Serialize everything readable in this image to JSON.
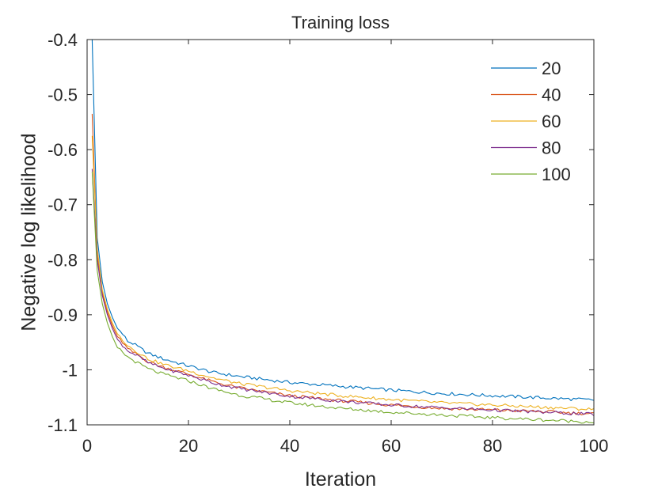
{
  "chart_data": {
    "type": "line",
    "title": "Training loss",
    "xlabel": "Iteration",
    "ylabel": "Negative log likelihood",
    "xlim": [
      0,
      100
    ],
    "ylim": [
      -1.1,
      -0.4
    ],
    "xticks": [
      0,
      20,
      40,
      60,
      80,
      100
    ],
    "xtick_labels": [
      "0",
      "20",
      "40",
      "60",
      "80",
      "100"
    ],
    "yticks": [
      -0.4,
      -0.5,
      -0.6,
      -0.7,
      -0.8,
      -0.9,
      -1.0,
      -1.1
    ],
    "ytick_labels": [
      "-0.4",
      "-0.5",
      "-0.6",
      "-0.7",
      "-0.8",
      "-0.9",
      "-1",
      "-1.1"
    ],
    "grid": false,
    "legend_position": "top-right",
    "x": [
      1,
      2,
      3,
      4,
      5,
      6,
      7,
      8,
      9,
      10,
      12,
      15,
      20,
      25,
      30,
      40,
      50,
      60,
      70,
      80,
      90,
      100
    ],
    "series": [
      {
        "name": "20",
        "color": "#0072BD",
        "values": [
          -0.4,
          -0.76,
          -0.84,
          -0.88,
          -0.905,
          -0.925,
          -0.935,
          -0.948,
          -0.952,
          -0.958,
          -0.97,
          -0.98,
          -0.993,
          -1.005,
          -1.012,
          -1.023,
          -1.03,
          -1.037,
          -1.043,
          -1.047,
          -1.051,
          -1.055
        ]
      },
      {
        "name": "40",
        "color": "#D95319",
        "values": [
          -0.535,
          -0.79,
          -0.86,
          -0.895,
          -0.92,
          -0.94,
          -0.95,
          -0.962,
          -0.968,
          -0.973,
          -0.985,
          -0.995,
          -1.008,
          -1.022,
          -1.033,
          -1.047,
          -1.056,
          -1.064,
          -1.07,
          -1.073,
          -1.076,
          -1.08
        ]
      },
      {
        "name": "60",
        "color": "#EDB120",
        "values": [
          -0.575,
          -0.78,
          -0.855,
          -0.89,
          -0.915,
          -0.935,
          -0.945,
          -0.955,
          -0.962,
          -0.968,
          -0.98,
          -0.99,
          -1.002,
          -1.015,
          -1.025,
          -1.038,
          -1.047,
          -1.054,
          -1.06,
          -1.064,
          -1.068,
          -1.072
        ]
      },
      {
        "name": "80",
        "color": "#7E2F8E",
        "values": [
          -0.635,
          -0.8,
          -0.865,
          -0.9,
          -0.925,
          -0.945,
          -0.955,
          -0.965,
          -0.97,
          -0.975,
          -0.987,
          -0.997,
          -1.01,
          -1.024,
          -1.034,
          -1.048,
          -1.057,
          -1.064,
          -1.069,
          -1.073,
          -1.077,
          -1.081
        ]
      },
      {
        "name": "100",
        "color": "#77AC30",
        "values": [
          -0.64,
          -0.82,
          -0.88,
          -0.915,
          -0.94,
          -0.96,
          -0.968,
          -0.977,
          -0.982,
          -0.988,
          -0.998,
          -1.008,
          -1.02,
          -1.035,
          -1.046,
          -1.06,
          -1.07,
          -1.077,
          -1.082,
          -1.087,
          -1.091,
          -1.095
        ]
      }
    ]
  }
}
